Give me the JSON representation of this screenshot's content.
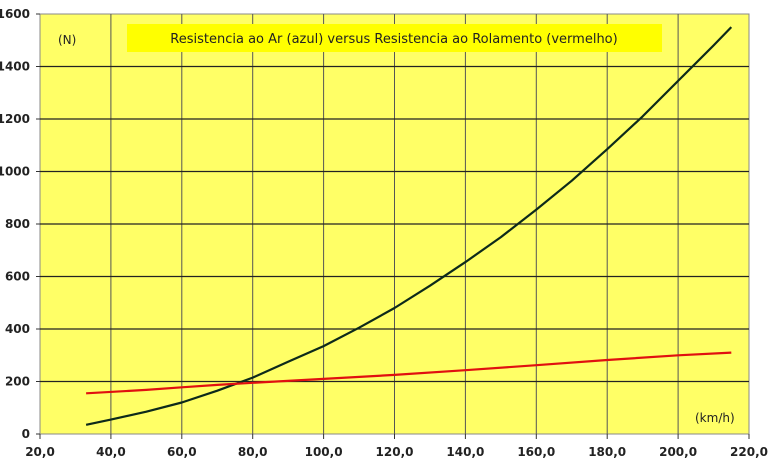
{
  "chart_data": {
    "type": "line",
    "title": "Resistencia ao Ar (azul)  versus Resistencia ao Rolamento (vermelho)",
    "xlabel": "(km/h)",
    "ylabel": "(N)",
    "xlim": [
      20,
      220
    ],
    "ylim": [
      0,
      1600
    ],
    "x_ticks": [
      "20,0",
      "40,0",
      "60,0",
      "80,0",
      "100,0",
      "120,0",
      "140,0",
      "160,0",
      "180,0",
      "200,0",
      "220,0"
    ],
    "y_ticks": [
      "0",
      "200",
      "400",
      "600",
      "800",
      "1000",
      "1200",
      "1400",
      "1600"
    ],
    "grid": true,
    "background_color": "#ffff66",
    "title_box_color": "#ffff00",
    "series": [
      {
        "color": "#0d2a1a",
        "x": [
          33,
          40,
          50,
          60,
          70,
          80,
          90,
          100,
          110,
          120,
          130,
          140,
          150,
          160,
          170,
          180,
          190,
          200,
          210,
          215
        ],
        "y": [
          35,
          55,
          85,
          120,
          165,
          215,
          275,
          335,
          405,
          480,
          565,
          655,
          750,
          855,
          965,
          1085,
          1210,
          1345,
          1480,
          1550
        ]
      },
      {
        "color": "#e01010",
        "x": [
          33,
          50,
          60,
          70,
          80,
          100,
          120,
          140,
          160,
          180,
          200,
          215
        ],
        "y": [
          155,
          168,
          178,
          187,
          195,
          210,
          225,
          243,
          262,
          282,
          300,
          310
        ]
      }
    ]
  }
}
